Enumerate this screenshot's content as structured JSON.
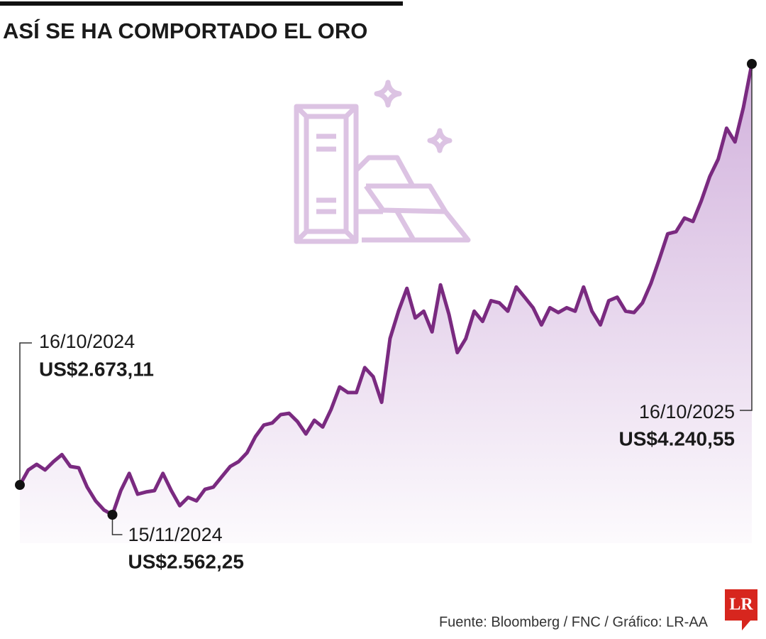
{
  "chart_data": {
    "type": "area",
    "title": "ASÍ SE HA COMPORTADO EL ORO",
    "source": "Fuente: Bloomberg / FNC / Gráfico: LR-AA",
    "logo": "LR",
    "color": "#7a2a80",
    "fill_color": "#c9a3d6",
    "categories": [
      "16/10/2024",
      null,
      null,
      null,
      null,
      null,
      null,
      null,
      null,
      null,
      null,
      "15/11/2024",
      null,
      null,
      null,
      null,
      null,
      null,
      null,
      null,
      null,
      null,
      null,
      null,
      null,
      null,
      null,
      null,
      null,
      null,
      null,
      null,
      null,
      null,
      null,
      null,
      null,
      null,
      null,
      null,
      null,
      null,
      null,
      null,
      null,
      null,
      null,
      null,
      null,
      null,
      null,
      null,
      null,
      null,
      null,
      null,
      null,
      null,
      null,
      null,
      null,
      null,
      null,
      null,
      null,
      null,
      null,
      null,
      null,
      null,
      null,
      null,
      null,
      null,
      null,
      null,
      null,
      null,
      null,
      null,
      null,
      null,
      null,
      null,
      null,
      null,
      null,
      "16/10/2025"
    ],
    "values": [
      2673.11,
      2729,
      2750,
      2729,
      2760,
      2786,
      2742,
      2737,
      2665,
      2614,
      2580,
      2562.25,
      2652,
      2716,
      2639,
      2647,
      2652,
      2716,
      2652,
      2596,
      2627,
      2614,
      2657,
      2665,
      2704,
      2742,
      2760,
      2793,
      2853,
      2896,
      2904,
      2935,
      2940,
      2909,
      2863,
      2914,
      2889,
      2955,
      3038,
      3017,
      3017,
      3110,
      3076,
      2981,
      3218,
      3320,
      3405,
      3295,
      3320,
      3243,
      3418,
      3308,
      3166,
      3218,
      3320,
      3282,
      3359,
      3351,
      3320,
      3410,
      3372,
      3333,
      3269,
      3333,
      3315,
      3333,
      3320,
      3410,
      3320,
      3269,
      3359,
      3372,
      3320,
      3315,
      3351,
      3423,
      3513,
      3608,
      3616,
      3667,
      3654,
      3731,
      3821,
      3886,
      4001,
      3950,
      4078,
      4240.55
    ],
    "value_labels": [
      "US$2.673,11",
      null,
      null,
      null,
      null,
      null,
      null,
      null,
      null,
      null,
      null,
      "US$2.562,25",
      null,
      null,
      null,
      null,
      null,
      null,
      null,
      null,
      null,
      null,
      null,
      null,
      null,
      null,
      null,
      null,
      null,
      null,
      null,
      null,
      null,
      null,
      null,
      null,
      null,
      null,
      null,
      null,
      null,
      null,
      null,
      null,
      null,
      null,
      null,
      null,
      null,
      null,
      null,
      null,
      null,
      null,
      null,
      null,
      null,
      null,
      null,
      null,
      null,
      null,
      null,
      null,
      null,
      null,
      null,
      null,
      null,
      null,
      null,
      null,
      null,
      null,
      null,
      null,
      null,
      null,
      null,
      null,
      null,
      null,
      null,
      null,
      null,
      null,
      null,
      "US$4.240,55"
    ]
  }
}
